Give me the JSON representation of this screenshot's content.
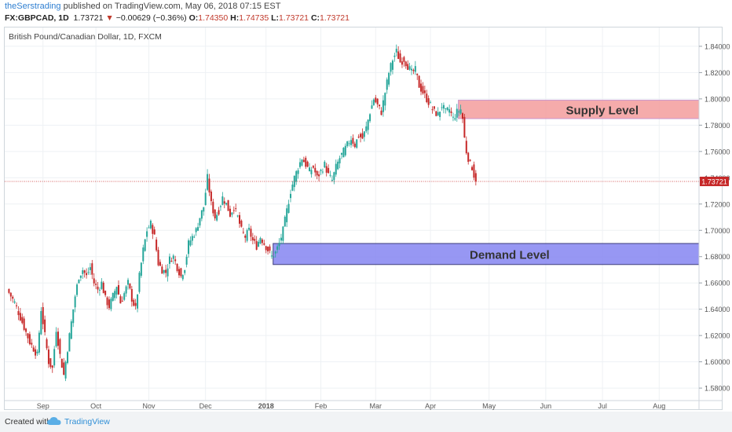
{
  "header": {
    "username": "theSerstrading",
    "published_text": "published on TradingView.com, May 06, 2018 07:15 EST",
    "symbol": "FX:GBPCAD, 1D",
    "last": "1.73721",
    "change": "−0.00629 (−0.36%)",
    "o_label": "O:",
    "o": "1.74350",
    "h_label": "H:",
    "h": "1.74735",
    "l_label": "L:",
    "l": "1.73721",
    "c_label": "C:",
    "c": "1.73721"
  },
  "footer": {
    "created_with": "Created with",
    "brand": "TradingView"
  },
  "colors": {
    "up": "#26a69a",
    "down": "#c62828",
    "axis_text": "#555555",
    "grid": "#eef1f4",
    "supply_fill": "#f4a3a3",
    "demand_fill": "#8c8cf2",
    "price_line": "#c62828"
  },
  "chart_data": {
    "type": "candlestick",
    "title": "British Pound/Canadian Dollar, 1D, FXCM",
    "price_label": "1.73721",
    "y_ticks": [
      "1.84000",
      "1.82000",
      "1.80000",
      "1.78000",
      "1.76000",
      "1.74000",
      "1.72000",
      "1.70000",
      "1.68000",
      "1.66000",
      "1.64000",
      "1.62000",
      "1.60000",
      "1.58000"
    ],
    "y_tick_values": [
      1.84,
      1.82,
      1.8,
      1.78,
      1.76,
      1.74,
      1.72,
      1.7,
      1.68,
      1.66,
      1.64,
      1.62,
      1.6,
      1.58
    ],
    "ylim": [
      1.5705,
      1.8543
    ],
    "x_ticks": [
      "Sep",
      "Oct",
      "Nov",
      "Dec",
      "2018",
      "Feb",
      "Mar",
      "Apr",
      "May",
      "Jun",
      "Jul",
      "Aug"
    ],
    "x_tick_index": [
      19,
      47,
      75,
      105,
      137,
      166,
      195,
      224,
      255,
      285,
      315,
      345
    ],
    "grid": true,
    "zones": [
      {
        "label": "Supply Level",
        "start_index": 240,
        "low": 1.785,
        "high": 1.799
      },
      {
        "label": "Demand Level",
        "start_index": 142,
        "low": 1.674,
        "high": 1.69
      }
    ],
    "close_path": [
      [
        0,
        1.655
      ],
      [
        4,
        1.645
      ],
      [
        8,
        1.63
      ],
      [
        12,
        1.615
      ],
      [
        16,
        1.605
      ],
      [
        18,
        1.64
      ],
      [
        20,
        1.62
      ],
      [
        22,
        1.6
      ],
      [
        24,
        1.595
      ],
      [
        26,
        1.625
      ],
      [
        28,
        1.605
      ],
      [
        30,
        1.59
      ],
      [
        32,
        1.61
      ],
      [
        34,
        1.63
      ],
      [
        36,
        1.65
      ],
      [
        38,
        1.665
      ],
      [
        40,
        1.67
      ],
      [
        42,
        1.665
      ],
      [
        44,
        1.672
      ],
      [
        46,
        1.66
      ],
      [
        48,
        1.655
      ],
      [
        50,
        1.66
      ],
      [
        52,
        1.648
      ],
      [
        54,
        1.642
      ],
      [
        56,
        1.65
      ],
      [
        58,
        1.658
      ],
      [
        60,
        1.645
      ],
      [
        62,
        1.652
      ],
      [
        64,
        1.66
      ],
      [
        66,
        1.648
      ],
      [
        68,
        1.64
      ],
      [
        70,
        1.665
      ],
      [
        72,
        1.685
      ],
      [
        74,
        1.7
      ],
      [
        76,
        1.705
      ],
      [
        78,
        1.695
      ],
      [
        80,
        1.675
      ],
      [
        82,
        1.67
      ],
      [
        84,
        1.668
      ],
      [
        86,
        1.678
      ],
      [
        88,
        1.68
      ],
      [
        90,
        1.672
      ],
      [
        92,
        1.665
      ],
      [
        94,
        1.672
      ],
      [
        96,
        1.69
      ],
      [
        98,
        1.695
      ],
      [
        100,
        1.7
      ],
      [
        102,
        1.71
      ],
      [
        104,
        1.718
      ],
      [
        106,
        1.74
      ],
      [
        108,
        1.72
      ],
      [
        110,
        1.71
      ],
      [
        112,
        1.715
      ],
      [
        114,
        1.725
      ],
      [
        116,
        1.72
      ],
      [
        118,
        1.712
      ],
      [
        120,
        1.718
      ],
      [
        122,
        1.71
      ],
      [
        124,
        1.7
      ],
      [
        126,
        1.695
      ],
      [
        128,
        1.7
      ],
      [
        130,
        1.692
      ],
      [
        132,
        1.688
      ],
      [
        134,
        1.695
      ],
      [
        136,
        1.69
      ],
      [
        138,
        1.685
      ],
      [
        140,
        1.68
      ],
      [
        142,
        1.683
      ],
      [
        144,
        1.69
      ],
      [
        146,
        1.7
      ],
      [
        148,
        1.715
      ],
      [
        150,
        1.73
      ],
      [
        152,
        1.74
      ],
      [
        154,
        1.748
      ],
      [
        156,
        1.755
      ],
      [
        158,
        1.75
      ],
      [
        160,
        1.745
      ],
      [
        162,
        1.748
      ],
      [
        164,
        1.74
      ],
      [
        166,
        1.745
      ],
      [
        168,
        1.75
      ],
      [
        170,
        1.742
      ],
      [
        172,
        1.738
      ],
      [
        174,
        1.748
      ],
      [
        176,
        1.755
      ],
      [
        178,
        1.76
      ],
      [
        180,
        1.765
      ],
      [
        182,
        1.77
      ],
      [
        184,
        1.765
      ],
      [
        186,
        1.772
      ],
      [
        188,
        1.77
      ],
      [
        190,
        1.778
      ],
      [
        192,
        1.79
      ],
      [
        194,
        1.8
      ],
      [
        196,
        1.795
      ],
      [
        198,
        1.79
      ],
      [
        200,
        1.805
      ],
      [
        202,
        1.82
      ],
      [
        204,
        1.83
      ],
      [
        206,
        1.836
      ],
      [
        208,
        1.828
      ],
      [
        210,
        1.83
      ],
      [
        212,
        1.825
      ],
      [
        214,
        1.82
      ],
      [
        216,
        1.822
      ],
      [
        218,
        1.81
      ],
      [
        220,
        1.805
      ],
      [
        222,
        1.8
      ],
      [
        224,
        1.795
      ],
      [
        226,
        1.79
      ],
      [
        228,
        1.788
      ],
      [
        230,
        1.795
      ],
      [
        232,
        1.79
      ],
      [
        234,
        1.792
      ],
      [
        236,
        1.785
      ],
      [
        238,
        1.79
      ],
      [
        240,
        1.792
      ],
      [
        241,
        1.785
      ],
      [
        242,
        1.77
      ],
      [
        243,
        1.76
      ],
      [
        244,
        1.755
      ],
      [
        245,
        1.75
      ],
      [
        246,
        1.748
      ],
      [
        247,
        1.742
      ],
      [
        248,
        1.737
      ]
    ]
  }
}
